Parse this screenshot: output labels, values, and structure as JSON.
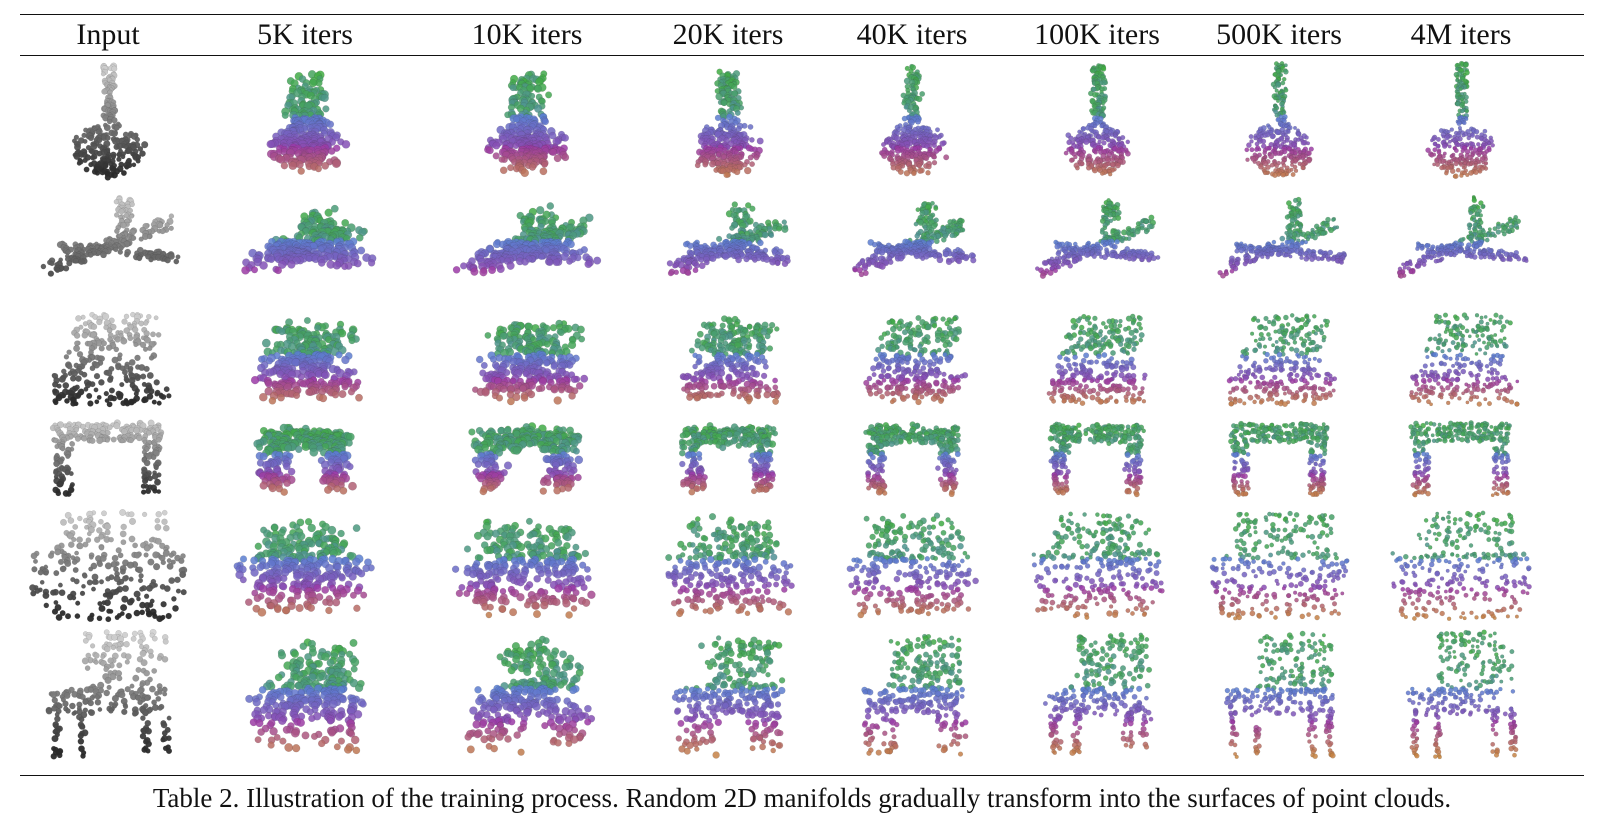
{
  "table": {
    "columns": [
      "Input",
      "5K iters",
      "10K iters",
      "20K iters",
      "40K iters",
      "100K iters",
      "500K iters",
      "4M iters"
    ],
    "rows": [
      "guitar",
      "airplane",
      "laptop",
      "table",
      "sofa",
      "chair"
    ]
  },
  "caption": "Table 2. Illustration of the training process. Random 2D manifolds gradually transform into the surfaces of point clouds.",
  "colors": {
    "input_dark": "#2a2a2a",
    "input_light": "#d8d8d8",
    "green": "#3fae3a",
    "orange": "#c98a3a",
    "purple": "#9a3aa8",
    "blue": "#5a7fd0",
    "rule": "#111111"
  },
  "icons": {
    "guitar": "guitar-point-cloud-icon",
    "airplane": "airplane-point-cloud-icon",
    "laptop": "laptop-point-cloud-icon",
    "table": "table-point-cloud-icon",
    "sofa": "sofa-point-cloud-icon",
    "chair": "chair-point-cloud-icon"
  }
}
